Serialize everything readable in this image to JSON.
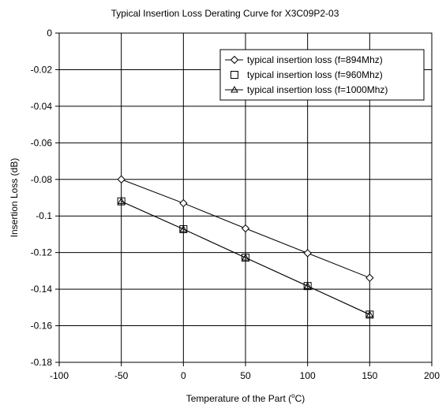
{
  "chart_data": {
    "type": "line",
    "title": "Typical Insertion Loss Derating Curve for X3C09P2-03",
    "xlabel_prefix": "Temperature of the Part (",
    "xlabel_super": "o",
    "xlabel_suffix": "C)",
    "ylabel": "Insertion Loss (dB)",
    "xlim": [
      -100,
      200
    ],
    "ylim": [
      -0.18,
      0
    ],
    "x_ticks": [
      -100,
      -50,
      0,
      50,
      100,
      150,
      200
    ],
    "x_tick_labels": [
      "-100",
      "-50",
      "0",
      "50",
      "100",
      "150",
      "200"
    ],
    "y_ticks": [
      0,
      -0.02,
      -0.04,
      -0.06,
      -0.08,
      -0.1,
      -0.12,
      -0.14,
      -0.16,
      -0.18
    ],
    "y_tick_labels": [
      "0",
      "-0.02",
      "-0.04",
      "-0.06",
      "-0.08",
      "-0.1",
      "-0.12",
      "-0.14",
      "-0.16",
      "-0.18"
    ],
    "grid": true,
    "legend_position": "top-right",
    "x": [
      -50,
      0,
      50,
      100,
      150
    ],
    "series": [
      {
        "name": "typical insertion loss (f=894Mhz)",
        "marker": "diamond",
        "values": [
          -0.08,
          -0.093,
          -0.1068,
          -0.1203,
          -0.1338
        ]
      },
      {
        "name": "typical insertion loss (f=960Mhz)",
        "marker": "square",
        "values": [
          -0.092,
          -0.1072,
          -0.1228,
          -0.1383,
          -0.1539
        ]
      },
      {
        "name": "typical insertion loss (f=1000Mhz)",
        "marker": "triangle",
        "values": [
          -0.092,
          -0.1072,
          -0.1228,
          -0.1383,
          -0.1539
        ]
      }
    ]
  }
}
